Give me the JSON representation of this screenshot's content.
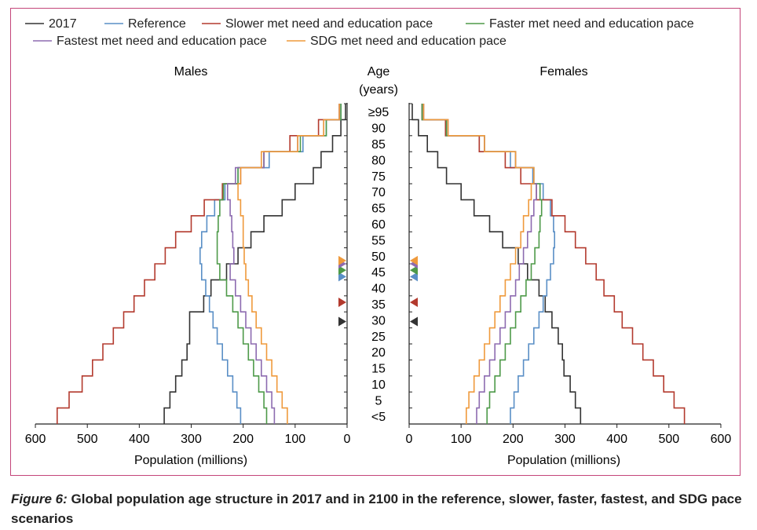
{
  "caption": {
    "figure_label": "Figure 6:",
    "text": "Global population age structure in 2017 and in 2100 in the reference, slower, faster, fastest, and SDG pace scenarios"
  },
  "chart_data": {
    "type": "line",
    "subtype": "population-pyramid",
    "panels": [
      "Males",
      "Females"
    ],
    "center_axis_label": "Age (years)",
    "age_groups": [
      "<5",
      "5",
      "10",
      "15",
      "20",
      "25",
      "30",
      "35",
      "40",
      "45",
      "50",
      "55",
      "60",
      "65",
      "70",
      "75",
      "80",
      "85",
      "90",
      "≥95"
    ],
    "age_tick_labels": [
      "<5",
      "5",
      "10",
      "15",
      "20",
      "25",
      "30",
      "35",
      "40",
      "45",
      "50",
      "55",
      "60",
      "65",
      "70",
      "75",
      "80",
      "85",
      "90",
      "≥95"
    ],
    "xlabel": "Population (millions)",
    "xlim": [
      0,
      600
    ],
    "x_ticks": [
      0,
      100,
      200,
      300,
      400,
      500,
      600
    ],
    "legend_position": "top",
    "series": [
      {
        "name": "2017",
        "color": "#333333",
        "males": [
          352,
          341,
          330,
          318,
          308,
          303,
          303,
          276,
          262,
          232,
          210,
          185,
          160,
          125,
          100,
          65,
          50,
          28,
          12,
          3
        ],
        "females": [
          330,
          320,
          310,
          298,
          295,
          287,
          275,
          262,
          250,
          228,
          210,
          180,
          155,
          125,
          100,
          72,
          55,
          35,
          18,
          6
        ],
        "median_age": 32
      },
      {
        "name": "Reference",
        "color": "#5a8fc6",
        "males": [
          205,
          212,
          220,
          230,
          240,
          250,
          258,
          265,
          272,
          280,
          283,
          280,
          270,
          255,
          235,
          210,
          150,
          85,
          40,
          12
        ],
        "females": [
          195,
          202,
          210,
          220,
          230,
          240,
          250,
          258,
          265,
          272,
          278,
          280,
          278,
          272,
          258,
          238,
          195,
          135,
          70,
          25
        ],
        "median_age": 46
      },
      {
        "name": "Slower met need and education pace",
        "color": "#b33a2e",
        "males": [
          558,
          535,
          510,
          490,
          470,
          450,
          430,
          410,
          390,
          370,
          350,
          330,
          300,
          275,
          240,
          205,
          160,
          110,
          55,
          15
        ],
        "females": [
          530,
          510,
          490,
          470,
          450,
          430,
          410,
          395,
          375,
          360,
          340,
          320,
          300,
          275,
          245,
          215,
          185,
          135,
          70,
          25
        ],
        "median_age": 38
      },
      {
        "name": "Faster met need and education pace",
        "color": "#4e9a49",
        "males": [
          155,
          160,
          170,
          180,
          190,
          200,
          210,
          220,
          232,
          245,
          250,
          250,
          248,
          245,
          238,
          210,
          160,
          90,
          40,
          12
        ],
        "females": [
          150,
          155,
          165,
          175,
          185,
          195,
          205,
          215,
          225,
          235,
          242,
          250,
          252,
          255,
          252,
          240,
          205,
          145,
          72,
          25
        ],
        "median_age": 48
      },
      {
        "name": "Fastest met need and education pace",
        "color": "#8d6bb0",
        "males": [
          140,
          145,
          155,
          165,
          175,
          185,
          195,
          205,
          215,
          225,
          218,
          220,
          222,
          225,
          230,
          215,
          160,
          95,
          45,
          15
        ],
        "females": [
          130,
          135,
          145,
          155,
          165,
          175,
          185,
          195,
          205,
          212,
          220,
          228,
          235,
          240,
          245,
          240,
          205,
          145,
          75,
          28
        ],
        "median_age": 50
      },
      {
        "name": "SDG met need and education pace",
        "color": "#ef9a3c",
        "males": [
          115,
          125,
          135,
          145,
          155,
          165,
          175,
          183,
          190,
          195,
          198,
          200,
          200,
          205,
          210,
          205,
          165,
          95,
          45,
          15
        ],
        "females": [
          110,
          115,
          125,
          135,
          145,
          155,
          165,
          175,
          185,
          195,
          205,
          215,
          220,
          230,
          235,
          240,
          205,
          145,
          75,
          28
        ],
        "median_age": 51
      }
    ]
  }
}
